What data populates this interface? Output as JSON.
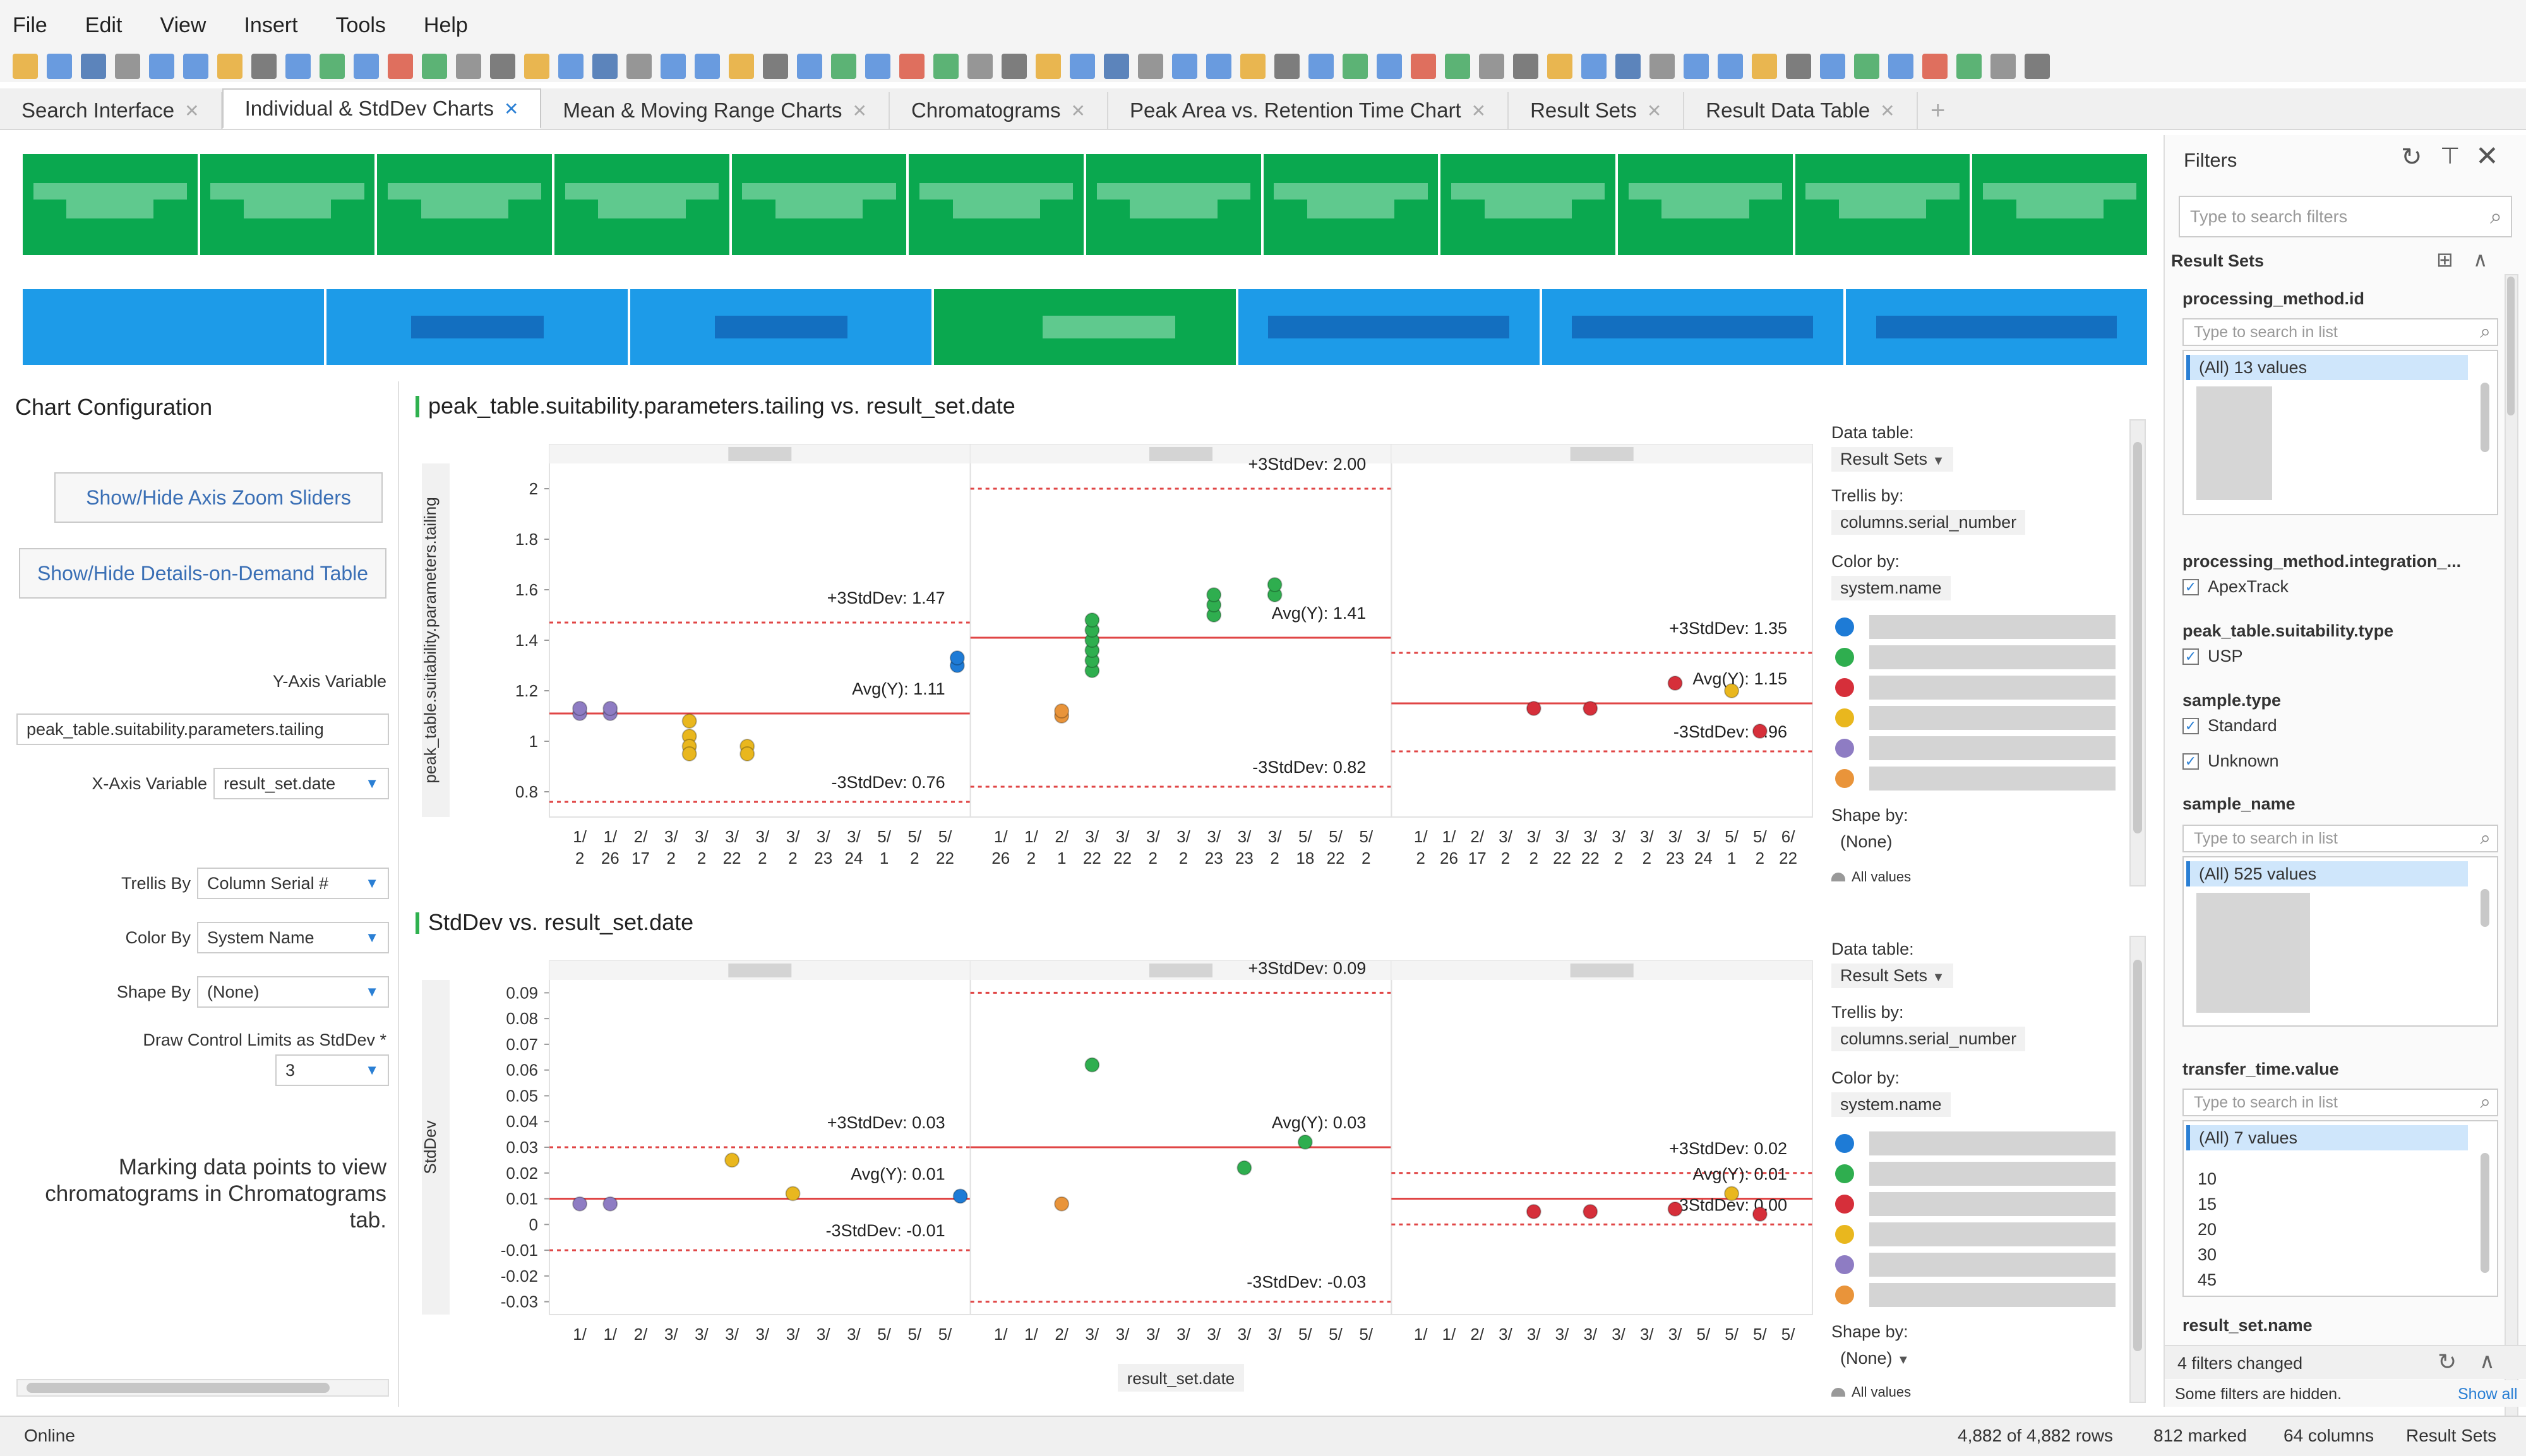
{
  "menu": [
    "File",
    "Edit",
    "View",
    "Insert",
    "Tools",
    "Help"
  ],
  "tabs": [
    {
      "label": "Search Interface",
      "active": false
    },
    {
      "label": "Individual & StdDev Charts",
      "active": true
    },
    {
      "label": "Mean & Moving Range Charts",
      "active": false
    },
    {
      "label": "Chromatograms",
      "active": false
    },
    {
      "label": "Peak Area vs. Retention Time Chart",
      "active": false
    },
    {
      "label": "Result Sets",
      "active": false
    },
    {
      "label": "Result Data Table",
      "active": false
    }
  ],
  "toolbar_icons": [
    "open-icon",
    "save-icon",
    "print-icon",
    "undo-icon",
    "redo-icon",
    "filter-icon",
    "bookmark-icon",
    "table-icon",
    "bar-chart-icon",
    "line-chart-icon",
    "scatter-icon",
    "pie-icon",
    "map-icon",
    "gear-icon",
    "layout-icon"
  ],
  "left_panel": {
    "title": "Chart Configuration",
    "zoom_button": "Show/Hide Axis Zoom Sliders",
    "details_button": "Show/Hide Details-on-Demand Table",
    "y_axis_label": "Y-Axis Variable",
    "y_axis_value": "peak_table.suitability.parameters.tailing",
    "x_axis_label": "X-Axis Variable",
    "x_axis_value": "result_set.date",
    "trellis_label": "Trellis By",
    "trellis_value": "Column Serial #",
    "color_label": "Color By",
    "color_value": "System Name",
    "shape_label": "Shape By",
    "shape_value": "(None)",
    "limits_label": "Draw Control Limits as StdDev *",
    "limits_value": "3",
    "note_line1": "Marking data points to view",
    "note_line2": "chromatograms in Chromatograms",
    "note_line3": "tab."
  },
  "chart_data": [
    {
      "type": "scatter",
      "title": "peak_table.suitability.parameters.tailing vs. result_set.date",
      "ylabel": "peak_table.suitability.parameters.tailing",
      "xlabel": "",
      "ylim": [
        0.7,
        2.1
      ],
      "yticks": [
        "2",
        "1.8",
        "1.6",
        "1.4",
        "1.2",
        "1",
        "0.8"
      ],
      "panels": [
        {
          "upper": 1.47,
          "avg": 1.11,
          "lower": 0.76,
          "upper_label": "+3StdDev: 1.47",
          "avg_label": "Avg(Y): 1.11",
          "lower_label": "-3StdDev: 0.76",
          "xticks": [
            "1/\n2",
            "1/\n26",
            "2/\n17",
            "3/\n2",
            "3/\n2",
            "3/\n22",
            "3/\n2",
            "3/\n2",
            "3/\n23",
            "3/\n24",
            "5/\n1",
            "5/\n2",
            "5/\n22"
          ],
          "points": [
            {
              "x": 0,
              "y": 1.11,
              "c": "#8e7cc3"
            },
            {
              "x": 0,
              "y": 1.13,
              "c": "#8e7cc3"
            },
            {
              "x": 1,
              "y": 1.11,
              "c": "#8e7cc3"
            },
            {
              "x": 1,
              "y": 1.13,
              "c": "#8e7cc3"
            },
            {
              "x": 3.6,
              "y": 1.08,
              "c": "#e9b71e"
            },
            {
              "x": 3.6,
              "y": 1.02,
              "c": "#e9b71e"
            },
            {
              "x": 3.6,
              "y": 0.98,
              "c": "#e9b71e"
            },
            {
              "x": 3.6,
              "y": 0.95,
              "c": "#e9b71e"
            },
            {
              "x": 5.5,
              "y": 0.98,
              "c": "#e9b71e"
            },
            {
              "x": 5.5,
              "y": 0.95,
              "c": "#e9b71e"
            },
            {
              "x": 12.4,
              "y": 1.3,
              "c": "#1e7bd6"
            },
            {
              "x": 12.4,
              "y": 1.33,
              "c": "#1e7bd6"
            }
          ]
        },
        {
          "upper": 2.0,
          "avg": 1.41,
          "lower": 0.82,
          "upper_label": "+3StdDev: 2.00",
          "avg_label": "Avg(Y): 1.41",
          "lower_label": "-3StdDev: 0.82",
          "xticks": [
            "1/\n26",
            "1/\n2",
            "2/\n1",
            "3/\n22",
            "3/\n22",
            "3/\n2",
            "3/\n2",
            "3/\n23",
            "3/\n23",
            "3/\n2",
            "5/\n18",
            "5/\n22",
            "5/\n2"
          ],
          "points": [
            {
              "x": 2,
              "y": 1.1,
              "c": "#e9943a"
            },
            {
              "x": 2,
              "y": 1.12,
              "c": "#e9943a"
            },
            {
              "x": 3,
              "y": 1.28,
              "c": "#2fae4f"
            },
            {
              "x": 3,
              "y": 1.32,
              "c": "#2fae4f"
            },
            {
              "x": 3,
              "y": 1.36,
              "c": "#2fae4f"
            },
            {
              "x": 3,
              "y": 1.4,
              "c": "#2fae4f"
            },
            {
              "x": 3,
              "y": 1.44,
              "c": "#2fae4f"
            },
            {
              "x": 3,
              "y": 1.48,
              "c": "#2fae4f"
            },
            {
              "x": 7,
              "y": 1.5,
              "c": "#2fae4f"
            },
            {
              "x": 7,
              "y": 1.54,
              "c": "#2fae4f"
            },
            {
              "x": 7,
              "y": 1.58,
              "c": "#2fae4f"
            },
            {
              "x": 9,
              "y": 1.58,
              "c": "#2fae4f"
            },
            {
              "x": 9,
              "y": 1.62,
              "c": "#2fae4f"
            }
          ]
        },
        {
          "upper": 1.35,
          "avg": 1.15,
          "lower": 0.96,
          "upper_label": "+3StdDev: 1.35",
          "avg_label": "Avg(Y): 1.15",
          "lower_label": "-3StdDev: 0.96",
          "xticks": [
            "1/\n2",
            "1/\n26",
            "2/\n17",
            "3/\n2",
            "3/\n2",
            "3/\n22",
            "3/\n22",
            "3/\n2",
            "3/\n2",
            "3/\n23",
            "3/\n24",
            "5/\n1",
            "5/\n2",
            "6/\n22"
          ],
          "points": [
            {
              "x": 4,
              "y": 1.13,
              "c": "#d62f3a"
            },
            {
              "x": 6,
              "y": 1.13,
              "c": "#d62f3a"
            },
            {
              "x": 9,
              "y": 1.23,
              "c": "#d62f3a"
            },
            {
              "x": 11,
              "y": 1.2,
              "c": "#e9b71e"
            },
            {
              "x": 12,
              "y": 1.04,
              "c": "#d62f3a"
            }
          ]
        }
      ]
    },
    {
      "type": "scatter",
      "title": "StdDev vs. result_set.date",
      "ylabel": "StdDev",
      "xlabel": "result_set.date",
      "ylim": [
        -0.035,
        0.095
      ],
      "yticks": [
        "0.09",
        "0.08",
        "0.07",
        "0.06",
        "0.05",
        "0.04",
        "0.03",
        "0.02",
        "0.01",
        "0",
        "-0.01",
        "-0.02",
        "-0.03"
      ],
      "panels": [
        {
          "upper": 0.03,
          "avg": 0.01,
          "lower": -0.01,
          "upper_label": "+3StdDev: 0.03",
          "avg_label": "Avg(Y): 0.01",
          "lower_label": "-3StdDev: -0.01",
          "xticks": [
            "1/",
            "1/",
            "2/",
            "3/",
            "3/",
            "3/",
            "3/",
            "3/",
            "3/",
            "3/",
            "5/",
            "5/",
            "5/"
          ],
          "points": [
            {
              "x": 0,
              "y": 0.008,
              "c": "#8e7cc3"
            },
            {
              "x": 1,
              "y": 0.008,
              "c": "#8e7cc3"
            },
            {
              "x": 5,
              "y": 0.025,
              "c": "#e9b71e"
            },
            {
              "x": 7,
              "y": 0.012,
              "c": "#e9b71e"
            },
            {
              "x": 12.5,
              "y": 0.011,
              "c": "#1e7bd6"
            }
          ]
        },
        {
          "upper": 0.09,
          "avg": 0.03,
          "lower": -0.03,
          "upper_label": "+3StdDev: 0.09",
          "avg_label": "Avg(Y): 0.03",
          "lower_label": "-3StdDev: -0.03",
          "xticks": [
            "1/",
            "1/",
            "2/",
            "3/",
            "3/",
            "3/",
            "3/",
            "3/",
            "3/",
            "3/",
            "5/",
            "5/",
            "5/"
          ],
          "points": [
            {
              "x": 2,
              "y": 0.008,
              "c": "#e9943a"
            },
            {
              "x": 3,
              "y": 0.062,
              "c": "#2fae4f"
            },
            {
              "x": 8,
              "y": 0.022,
              "c": "#2fae4f"
            },
            {
              "x": 10,
              "y": 0.032,
              "c": "#2fae4f"
            }
          ]
        },
        {
          "upper": 0.02,
          "avg": 0.01,
          "lower": 0.0,
          "upper_label": "+3StdDev: 0.02",
          "avg_label": "Avg(Y): 0.01",
          "lower_label": "-3StdDev: 0.00",
          "xticks": [
            "1/",
            "1/",
            "2/",
            "3/",
            "3/",
            "3/",
            "3/",
            "3/",
            "3/",
            "3/",
            "5/",
            "5/",
            "5/",
            "5/"
          ],
          "points": [
            {
              "x": 4,
              "y": 0.005,
              "c": "#d62f3a"
            },
            {
              "x": 6,
              "y": 0.005,
              "c": "#d62f3a"
            },
            {
              "x": 9,
              "y": 0.006,
              "c": "#d62f3a"
            },
            {
              "x": 11,
              "y": 0.012,
              "c": "#e9b71e"
            },
            {
              "x": 12,
              "y": 0.004,
              "c": "#d62f3a"
            }
          ]
        }
      ]
    }
  ],
  "chart_props": [
    {
      "data_table_label": "Data table:",
      "data_table_value": "Result Sets",
      "trellis_label": "Trellis by:",
      "trellis_value": "columns.serial_number",
      "color_label": "Color by:",
      "color_value": "system.name",
      "shape_label": "Shape by:",
      "shape_value": "(None)",
      "all_values": "All values"
    },
    {
      "data_table_label": "Data table:",
      "data_table_value": "Result Sets",
      "trellis_label": "Trellis by:",
      "trellis_value": "columns.serial_number",
      "color_label": "Color by:",
      "color_value": "system.name",
      "shape_label": "Shape by:",
      "shape_value": "(None)",
      "all_values": "All values"
    }
  ],
  "legend_colors": [
    "#1e7bd6",
    "#2fae4f",
    "#d62f3a",
    "#e9b71e",
    "#8e7cc3",
    "#e9943a"
  ],
  "filters": {
    "title": "Filters",
    "search_placeholder": "Type to search filters",
    "group": "Result Sets",
    "processing_method_id": "processing_method.id",
    "list_search_placeholder": "Type to search in list",
    "pm_all": "(All) 13 values",
    "integration": "processing_method.integration_...",
    "apextrack": "ApexTrack",
    "suitability_type": "peak_table.suitability.type",
    "usp": "USP",
    "sample_type": "sample.type",
    "standard": "Standard",
    "unknown": "Unknown",
    "sample_name": "sample_name",
    "sample_all": "(All) 525 values",
    "transfer_time": "transfer_time.value",
    "transfer_all": "(All) 7 values",
    "transfer_values": [
      "10",
      "15",
      "20",
      "30",
      "45"
    ],
    "result_set_name": "result_set.name",
    "filters_changed": "4 filters changed",
    "hidden_note": "Some filters are hidden.",
    "show_all": "Show all"
  },
  "status": {
    "left": "Online",
    "rows": "4,882 of 4,882 rows",
    "marked": "812 marked",
    "columns": "64 columns",
    "table": "Result Sets"
  }
}
